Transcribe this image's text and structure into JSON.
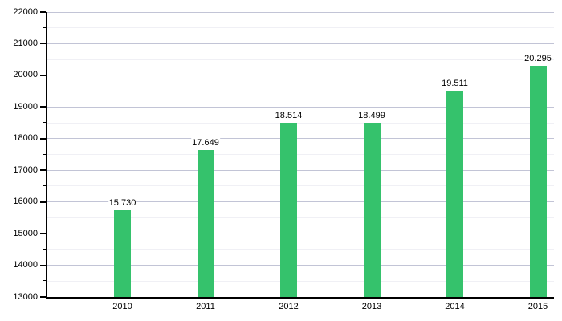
{
  "chart_data": {
    "type": "bar",
    "categories": [
      "2010",
      "2011",
      "2012",
      "2013",
      "2014",
      "2015"
    ],
    "values": [
      15730,
      17649,
      18514,
      18499,
      19511,
      20295
    ],
    "value_labels": [
      "15.730",
      "17.649",
      "18.514",
      "18.499",
      "19.511",
      "20.295"
    ],
    "ylim": [
      13000,
      22000
    ],
    "y_major_step": 1000,
    "y_minor_step": 500,
    "y_tick_labels": [
      "13000",
      "14000",
      "15000",
      "16000",
      "17000",
      "18000",
      "19000",
      "20000",
      "21000",
      "22000"
    ],
    "bar_color": "#35c26c",
    "grid_major_color": "#c2c4d6",
    "grid_minor_color": "#f0f0f5",
    "axis_color": "#000000",
    "text_color": "#000000",
    "background_color": "#ffffff",
    "grid": true,
    "legend": "none"
  }
}
